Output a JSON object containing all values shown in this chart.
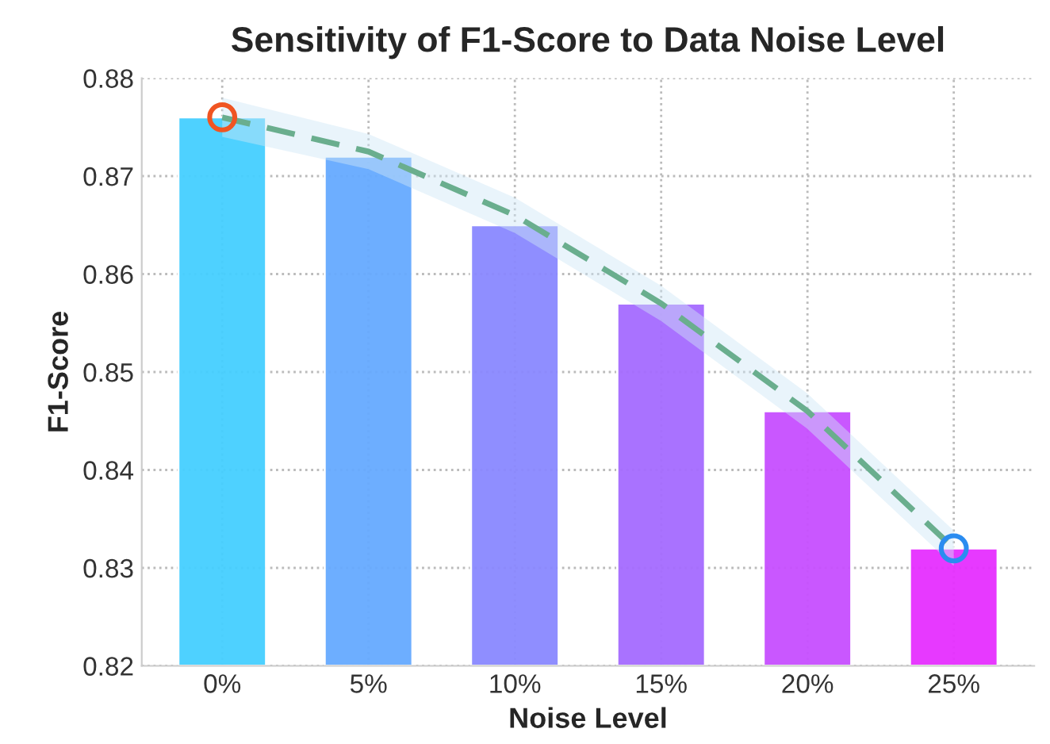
{
  "chart_data": {
    "type": "bar",
    "title": "Sensitivity of F1-Score to Data Noise Level",
    "xlabel": "Noise Level",
    "ylabel": "F1-Score",
    "categories": [
      "0%",
      "5%",
      "10%",
      "15%",
      "20%",
      "25%"
    ],
    "series": [
      {
        "colors": [
          "#45cfff",
          "#66aaff",
          "#8a88ff",
          "#a56bff",
          "#c74fff",
          "#e62fff"
        ],
        "values": [
          0.876,
          0.872,
          0.865,
          0.857,
          0.846,
          0.832
        ]
      },
      {
        "type": "line",
        "color": "#6aae8e",
        "line_style": "dashed",
        "x": [
          "0%",
          "5%",
          "10%",
          "15%",
          "20%",
          "25%"
        ],
        "values": [
          0.876,
          0.8725,
          0.866,
          0.857,
          0.846,
          0.832
        ],
        "lower": [
          0.874,
          0.8707,
          0.8642,
          0.8552,
          0.8442,
          0.8302
        ],
        "upper": [
          0.878,
          0.8743,
          0.8678,
          0.8588,
          0.8478,
          0.8338
        ]
      },
      {
        "type": "scatter",
        "marker": "circle",
        "x": [
          "0%",
          "25%"
        ],
        "colors": [
          "#f05522",
          "#2a8cf0"
        ],
        "values": [
          0.876,
          0.832
        ]
      }
    ],
    "ylim": [
      0.82,
      0.88
    ],
    "yticks": [
      {
        "value": 0.82,
        "label": "0.82"
      },
      {
        "value": 0.83,
        "label": "0.83"
      },
      {
        "value": 0.84,
        "label": "0.84"
      },
      {
        "value": 0.85,
        "label": "0.85"
      },
      {
        "value": 0.86,
        "label": "0.86"
      },
      {
        "value": 0.87,
        "label": "0.87"
      },
      {
        "value": 0.88,
        "label": "0.88"
      }
    ],
    "grid": true,
    "legend": false
  }
}
